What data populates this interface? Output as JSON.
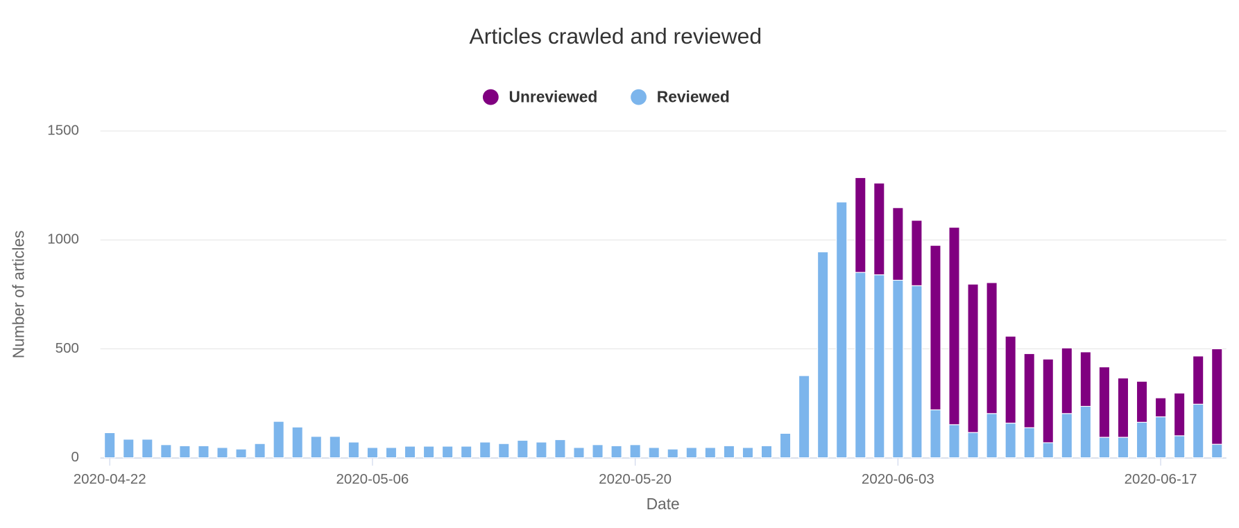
{
  "chart_data": {
    "type": "stacked-bar",
    "title": "Articles crawled and reviewed",
    "x_label": "Date",
    "y_label": "Number of articles",
    "categories": [
      "2020-04-22",
      null,
      null,
      null,
      null,
      null,
      null,
      null,
      null,
      null,
      null,
      null,
      null,
      null,
      "2020-05-06",
      null,
      null,
      null,
      null,
      null,
      null,
      null,
      null,
      null,
      null,
      null,
      null,
      null,
      "2020-05-20",
      null,
      null,
      null,
      null,
      null,
      null,
      null,
      null,
      null,
      null,
      null,
      null,
      null,
      "2020-06-03",
      null,
      null,
      null,
      null,
      null,
      null,
      null,
      null,
      null,
      null,
      null,
      null,
      null,
      "2020-06-17",
      null,
      null,
      null
    ],
    "series": [
      {
        "name": "Unreviewed",
        "color": "#800080",
        "values": [
          0,
          0,
          0,
          0,
          0,
          0,
          0,
          0,
          0,
          0,
          0,
          0,
          0,
          0,
          0,
          0,
          0,
          0,
          0,
          0,
          0,
          0,
          0,
          0,
          0,
          0,
          0,
          0,
          0,
          0,
          0,
          0,
          0,
          0,
          0,
          0,
          0,
          0,
          0,
          0,
          435,
          421,
          333,
          300,
          755,
          906,
          681,
          601,
          399,
          340,
          384,
          301,
          250,
          323,
          272,
          188,
          87,
          196,
          221,
          438
        ]
      },
      {
        "name": "Reviewed",
        "color": "#7cb5ec",
        "values": [
          115,
          85,
          85,
          60,
          55,
          55,
          47,
          40,
          65,
          167,
          141,
          98,
          98,
          72,
          47,
          47,
          53,
          53,
          53,
          53,
          72,
          65,
          80,
          72,
          83,
          47,
          60,
          55,
          60,
          47,
          40,
          47,
          47,
          55,
          47,
          55,
          112,
          377,
          945,
          1174,
          851,
          840,
          815,
          790,
          220,
          152,
          116,
          203,
          159,
          138,
          69,
          203,
          236,
          94,
          94,
          163,
          188,
          101,
          246,
          62
        ]
      }
    ],
    "ylim": [
      0,
      1500
    ],
    "yticks": [
      0,
      500,
      1000,
      1500
    ],
    "grid": true
  }
}
